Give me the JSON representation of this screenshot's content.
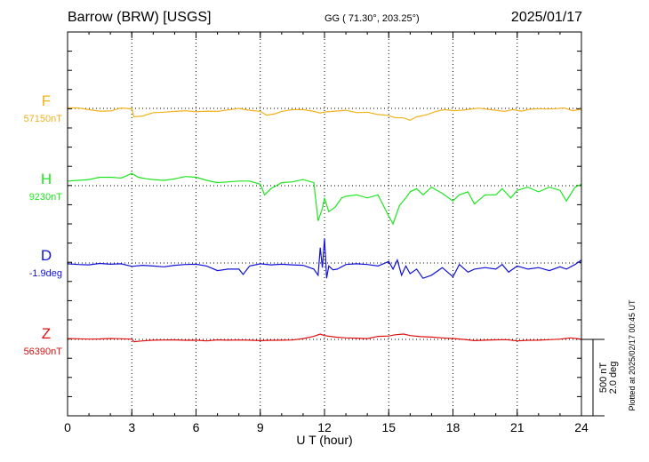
{
  "header": {
    "station": "Barrow (BRW)  [USGS]",
    "coords": "GG ( 71.30°, 203.25°)",
    "date": "2025/01/17"
  },
  "plotted_note": "Plotted at 2025/02/17 00:45 UT",
  "colors": {
    "F": "#f2b21c",
    "H": "#1ee61e",
    "D": "#1212d8",
    "Z": "#e01010",
    "axis": "#000000",
    "grid": "#000000"
  },
  "chart_data": {
    "type": "line",
    "title": "Barrow (BRW)  [USGS]",
    "xlabel": "U T (hour)",
    "xlim": [
      0,
      24
    ],
    "x_ticks": [
      0,
      3,
      6,
      9,
      12,
      15,
      18,
      21,
      24
    ],
    "x_tick_labels": [
      "0",
      "3",
      "6",
      "9",
      "12",
      "15",
      "18",
      "21",
      "24"
    ],
    "grid": true,
    "scale_bar": {
      "label1": "500 nT",
      "label2": "2.0 deg"
    },
    "series": [
      {
        "name": "F",
        "baseline_label": "57150nT",
        "points": [
          [
            0,
            4
          ],
          [
            0.5,
            3
          ],
          [
            1,
            -8
          ],
          [
            1.5,
            -18
          ],
          [
            2,
            -17
          ],
          [
            2.5,
            3
          ],
          [
            3,
            -3
          ],
          [
            3.1,
            -55
          ],
          [
            3.5,
            -50
          ],
          [
            4,
            -28
          ],
          [
            4.5,
            -25
          ],
          [
            5,
            -20
          ],
          [
            5.5,
            -15
          ],
          [
            6,
            -22
          ],
          [
            6.5,
            -18
          ],
          [
            7,
            -20
          ],
          [
            7.5,
            -10
          ],
          [
            8,
            0
          ],
          [
            8.5,
            -12
          ],
          [
            9,
            -20
          ],
          [
            9.3,
            -45
          ],
          [
            9.7,
            -35
          ],
          [
            10,
            -20
          ],
          [
            10.5,
            -8
          ],
          [
            11,
            -8
          ],
          [
            11.5,
            -20
          ],
          [
            11.8,
            -30
          ],
          [
            12,
            -24
          ],
          [
            12.5,
            -18
          ],
          [
            13,
            -12
          ],
          [
            13.5,
            -28
          ],
          [
            14,
            -25
          ],
          [
            14.5,
            -40
          ],
          [
            14.9,
            -45
          ],
          [
            15.3,
            -60
          ],
          [
            15.7,
            -62
          ],
          [
            16,
            -78
          ],
          [
            16.3,
            -55
          ],
          [
            16.8,
            -40
          ],
          [
            17.2,
            -20
          ],
          [
            17.6,
            -8
          ],
          [
            18,
            -15
          ],
          [
            18.4,
            -12
          ],
          [
            18.8,
            -5
          ],
          [
            19.2,
            2
          ],
          [
            19.6,
            -5
          ],
          [
            20,
            -12
          ],
          [
            20.4,
            -20
          ],
          [
            20.8,
            -8
          ],
          [
            21.2,
            -18
          ],
          [
            21.6,
            -5
          ],
          [
            22,
            -2
          ],
          [
            22.4,
            -4
          ],
          [
            22.8,
            -2
          ],
          [
            23.2,
            3
          ],
          [
            23.6,
            -15
          ],
          [
            24,
            -5
          ]
        ]
      },
      {
        "name": "H",
        "baseline_label": "9230nT",
        "points": [
          [
            0,
            30
          ],
          [
            0.5,
            35
          ],
          [
            1,
            40
          ],
          [
            1.5,
            55
          ],
          [
            2,
            55
          ],
          [
            2.5,
            50
          ],
          [
            3,
            80
          ],
          [
            3.3,
            55
          ],
          [
            3.7,
            45
          ],
          [
            4,
            40
          ],
          [
            4.5,
            35
          ],
          [
            5,
            45
          ],
          [
            5.5,
            60
          ],
          [
            6,
            55
          ],
          [
            6.5,
            35
          ],
          [
            7,
            20
          ],
          [
            7.5,
            25
          ],
          [
            8,
            30
          ],
          [
            8.5,
            30
          ],
          [
            9,
            10
          ],
          [
            9.2,
            -60
          ],
          [
            9.5,
            -20
          ],
          [
            10,
            20
          ],
          [
            10.5,
            25
          ],
          [
            11,
            40
          ],
          [
            11.5,
            20
          ],
          [
            11.7,
            -230
          ],
          [
            11.9,
            -150
          ],
          [
            12,
            -80
          ],
          [
            12.2,
            -170
          ],
          [
            12.5,
            -140
          ],
          [
            12.8,
            -80
          ],
          [
            13,
            -70
          ],
          [
            13.5,
            -60
          ],
          [
            14,
            -80
          ],
          [
            14.5,
            -60
          ],
          [
            15,
            -200
          ],
          [
            15.2,
            -250
          ],
          [
            15.5,
            -130
          ],
          [
            15.8,
            -80
          ],
          [
            16,
            -40
          ],
          [
            16.3,
            -20
          ],
          [
            16.6,
            -60
          ],
          [
            17,
            -10
          ],
          [
            17.5,
            -50
          ],
          [
            18,
            -100
          ],
          [
            18.3,
            -60
          ],
          [
            18.7,
            -40
          ],
          [
            19,
            -120
          ],
          [
            19.5,
            -60
          ],
          [
            20,
            -60
          ],
          [
            20.3,
            -20
          ],
          [
            20.7,
            -80
          ],
          [
            21,
            -30
          ],
          [
            21.5,
            -10
          ],
          [
            22,
            -40
          ],
          [
            22.5,
            -10
          ],
          [
            23,
            -30
          ],
          [
            23.3,
            -100
          ],
          [
            23.7,
            -10
          ],
          [
            24,
            10
          ]
        ]
      },
      {
        "name": "D",
        "baseline_label": "-1.9deg",
        "points": [
          [
            0,
            -5
          ],
          [
            0.5,
            -10
          ],
          [
            1,
            -12
          ],
          [
            1.5,
            -3
          ],
          [
            2,
            -8
          ],
          [
            2.5,
            -5
          ],
          [
            3,
            -22
          ],
          [
            3.5,
            -15
          ],
          [
            4,
            -20
          ],
          [
            4.5,
            -25
          ],
          [
            5,
            -15
          ],
          [
            5.5,
            -10
          ],
          [
            6,
            -8
          ],
          [
            6.5,
            -20
          ],
          [
            7,
            -50
          ],
          [
            7.5,
            -40
          ],
          [
            8,
            -40
          ],
          [
            8.2,
            -75
          ],
          [
            8.5,
            -20
          ],
          [
            9,
            -5
          ],
          [
            9.5,
            -12
          ],
          [
            10,
            -8
          ],
          [
            10.5,
            -12
          ],
          [
            11,
            -15
          ],
          [
            11.5,
            -40
          ],
          [
            11.7,
            -80
          ],
          [
            11.8,
            100
          ],
          [
            11.9,
            -30
          ],
          [
            12,
            160
          ],
          [
            12.1,
            -100
          ],
          [
            12.2,
            -20
          ],
          [
            12.4,
            -45
          ],
          [
            12.6,
            -40
          ],
          [
            13,
            -10
          ],
          [
            13.5,
            -5
          ],
          [
            14,
            -10
          ],
          [
            14.5,
            -20
          ],
          [
            15,
            10
          ],
          [
            15.2,
            -40
          ],
          [
            15.4,
            20
          ],
          [
            15.6,
            -80
          ],
          [
            15.8,
            -20
          ],
          [
            16,
            -70
          ],
          [
            16.3,
            -40
          ],
          [
            16.6,
            -100
          ],
          [
            17,
            -80
          ],
          [
            17.5,
            -30
          ],
          [
            18,
            -90
          ],
          [
            18.3,
            -10
          ],
          [
            18.7,
            -60
          ],
          [
            19,
            -40
          ],
          [
            19.5,
            -30
          ],
          [
            20,
            -40
          ],
          [
            20.3,
            -10
          ],
          [
            20.6,
            -60
          ],
          [
            21,
            -20
          ],
          [
            21.5,
            -40
          ],
          [
            22,
            -30
          ],
          [
            22.5,
            -50
          ],
          [
            23,
            -25
          ],
          [
            23.3,
            -40
          ],
          [
            23.7,
            -10
          ],
          [
            24,
            20
          ]
        ]
      },
      {
        "name": "Z",
        "baseline_label": "56390nT",
        "points": [
          [
            0,
            5
          ],
          [
            0.5,
            4
          ],
          [
            1,
            2
          ],
          [
            1.5,
            3
          ],
          [
            2,
            6
          ],
          [
            2.5,
            4
          ],
          [
            3,
            2
          ],
          [
            3.1,
            -15
          ],
          [
            3.5,
            -10
          ],
          [
            4,
            -5
          ],
          [
            4.5,
            -4
          ],
          [
            5,
            -3
          ],
          [
            5.5,
            -6
          ],
          [
            6,
            -5
          ],
          [
            6.5,
            -10
          ],
          [
            7,
            -3
          ],
          [
            7.5,
            -5
          ],
          [
            8,
            -4
          ],
          [
            8.5,
            -5
          ],
          [
            9,
            -8
          ],
          [
            9.5,
            -6
          ],
          [
            10,
            -5
          ],
          [
            10.5,
            -4
          ],
          [
            11,
            5
          ],
          [
            11.5,
            20
          ],
          [
            11.8,
            35
          ],
          [
            12,
            25
          ],
          [
            12.5,
            15
          ],
          [
            13,
            10
          ],
          [
            13.5,
            8
          ],
          [
            14,
            5
          ],
          [
            14.5,
            20
          ],
          [
            15,
            22
          ],
          [
            15.3,
            30
          ],
          [
            15.7,
            35
          ],
          [
            16,
            25
          ],
          [
            16.5,
            18
          ],
          [
            17,
            15
          ],
          [
            17.5,
            10
          ],
          [
            18,
            6
          ],
          [
            18.5,
            0
          ],
          [
            19,
            -8
          ],
          [
            19.5,
            -5
          ],
          [
            20,
            -3
          ],
          [
            20.5,
            -2
          ],
          [
            21,
            -10
          ],
          [
            21.5,
            -6
          ],
          [
            22,
            -5
          ],
          [
            22.5,
            -2
          ],
          [
            23,
            2
          ],
          [
            23.5,
            10
          ],
          [
            24,
            2
          ]
        ]
      }
    ]
  }
}
